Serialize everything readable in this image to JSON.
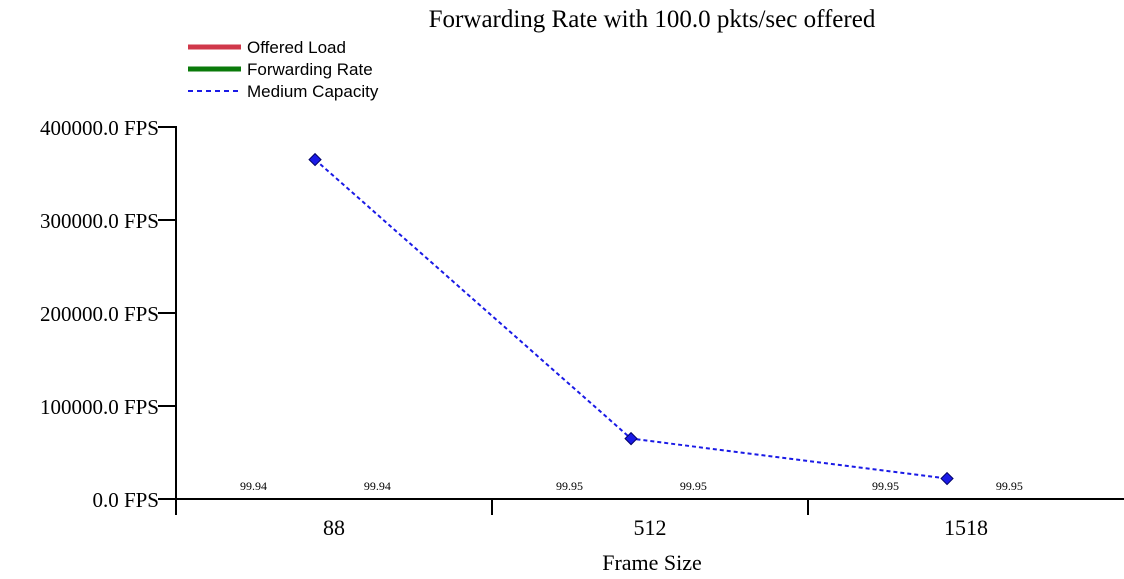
{
  "chart_data": {
    "type": "line",
    "title": "Forwarding Rate with 100.0 pkts/sec offered",
    "xlabel": "Frame Size",
    "ylabel": "",
    "categories": [
      "88",
      "512",
      "1518"
    ],
    "ylim": [
      0,
      400000
    ],
    "yticks": [
      {
        "value": 0,
        "label": "0.0 FPS"
      },
      {
        "value": 100000,
        "label": "100000.0 FPS"
      },
      {
        "value": 200000,
        "label": "200000.0 FPS"
      },
      {
        "value": 300000,
        "label": "300000.0 FPS"
      },
      {
        "value": 400000,
        "label": "400000.0 FPS"
      }
    ],
    "legend": {
      "placement": "top-left",
      "entries": [
        {
          "name": "Offered Load",
          "color": "#d0384a",
          "style": "solid"
        },
        {
          "name": "Forwarding Rate",
          "color": "#0a7a0a",
          "style": "solid"
        },
        {
          "name": "Medium Capacity",
          "color": "#1a1ae6",
          "style": "dashed"
        }
      ]
    },
    "series": [
      {
        "name": "Offered Load",
        "color": "#d0384a",
        "values": [
          99.94,
          99.95,
          99.95
        ],
        "data_labels": [
          "99.94",
          "99.95",
          "99.95"
        ]
      },
      {
        "name": "Forwarding Rate",
        "color": "#0a7a0a",
        "values": [
          99.94,
          99.95,
          99.95
        ],
        "data_labels": [
          "99.94",
          "99.95",
          "99.95"
        ]
      },
      {
        "name": "Medium Capacity",
        "color": "#1a1ae6",
        "values": [
          364963,
          64935,
          21982
        ]
      }
    ],
    "grid": false
  }
}
